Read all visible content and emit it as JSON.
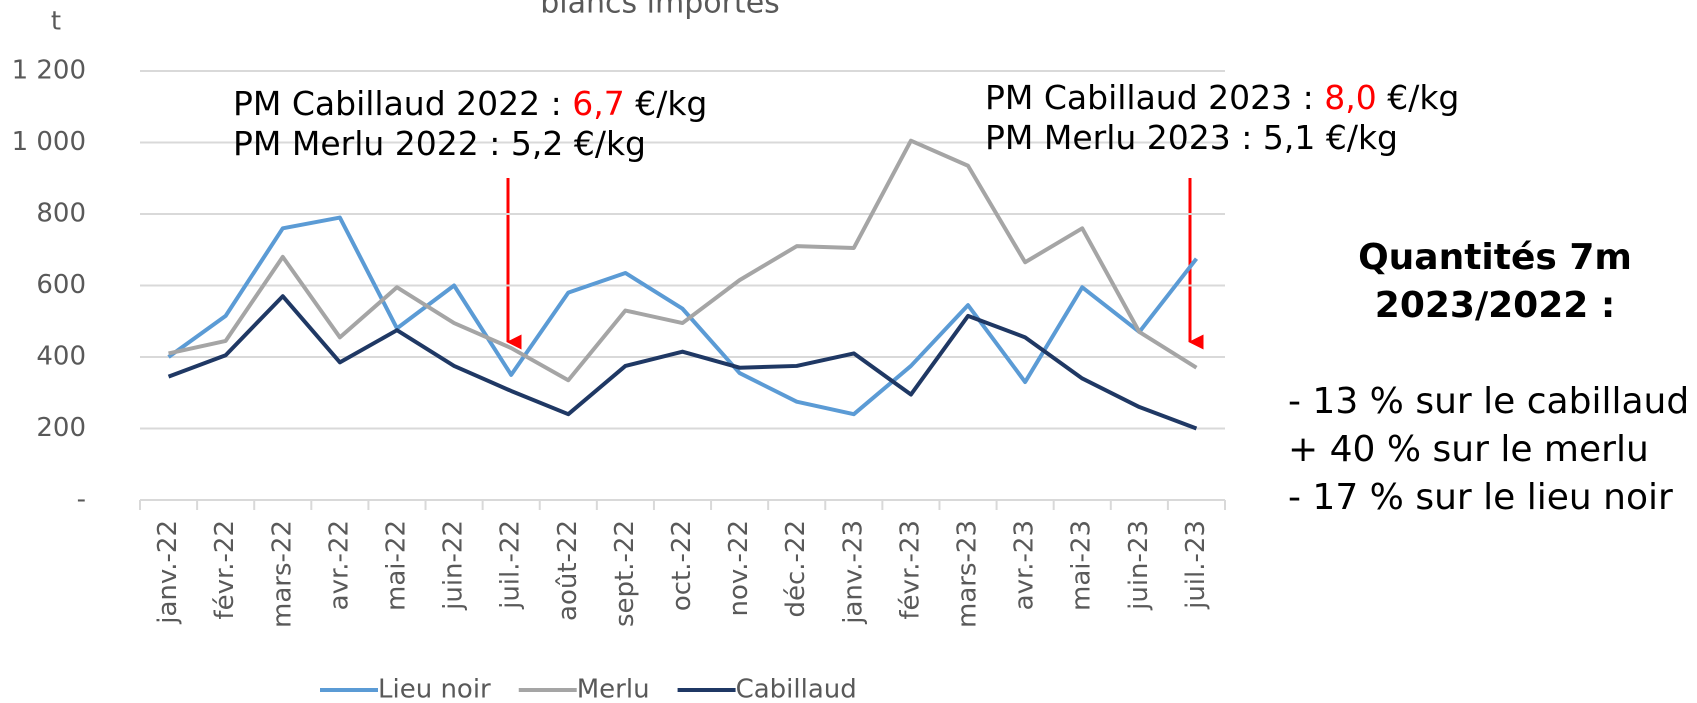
{
  "chart_data": {
    "type": "line",
    "title": "blancs importés",
    "y_axis_label": "t",
    "categories": [
      "janv.-22",
      "févr.-22",
      "mars-22",
      "avr.-22",
      "mai-22",
      "juin-22",
      "juil.-22",
      "août-22",
      "sept.-22",
      "oct.-22",
      "nov.-22",
      "déc.-22",
      "janv.-23",
      "févr.-23",
      "mars-23",
      "avr.-23",
      "mai-23",
      "juin-23",
      "juil.-23"
    ],
    "series": [
      {
        "name": "Lieu noir",
        "color": "#5b9bd5",
        "values": [
          400,
          515,
          760,
          790,
          480,
          600,
          350,
          580,
          635,
          535,
          355,
          275,
          240,
          375,
          545,
          330,
          595,
          470,
          675
        ]
      },
      {
        "name": "Merlu",
        "color": "#a5a5a5",
        "values": [
          410,
          445,
          680,
          455,
          595,
          495,
          425,
          335,
          530,
          495,
          615,
          710,
          705,
          1005,
          935,
          665,
          760,
          470,
          370
        ]
      },
      {
        "name": "Cabillaud",
        "color": "#1f3864",
        "values": [
          345,
          405,
          570,
          385,
          475,
          375,
          305,
          240,
          375,
          415,
          370,
          375,
          410,
          295,
          515,
          455,
          340,
          260,
          200
        ]
      }
    ],
    "ylim": [
      0,
      1200
    ],
    "yticks": [
      {
        "value": 0,
        "label": "-"
      },
      200,
      400,
      600,
      800,
      {
        "value": 1000,
        "label": "1 000"
      },
      {
        "value": 1200,
        "label": "1 200"
      }
    ],
    "grid": true,
    "legend": "bottom",
    "annotations": [
      {
        "text": "PM Cabillaud 2022 : ",
        "highlight": "6,7",
        "suffix": " €/kg"
      },
      {
        "text": "PM Merlu 2022 : 5,2 €/kg"
      },
      {
        "text": "PM Cabillaud 2023 : ",
        "highlight": "8,0",
        "suffix": " €/kg"
      },
      {
        "text": "PM Merlu 2023 : 5,1 €/kg"
      }
    ],
    "summary": {
      "title": [
        "Quantités 7m",
        "2023/2022 :"
      ],
      "lines": [
        "- 13 % sur le cabillaud",
        "+ 40 % sur le merlu",
        "- 17 % sur le lieu noir"
      ]
    }
  }
}
